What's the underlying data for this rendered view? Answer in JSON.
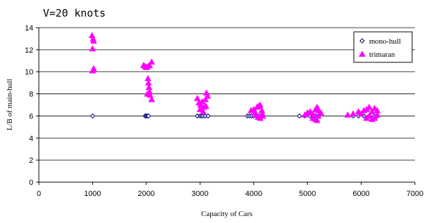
{
  "chart_data": {
    "type": "scatter",
    "title": "V=20 knots",
    "xlabel": "Capacity of Cars",
    "ylabel": "L/B of main-hull",
    "xlim": [
      0,
      7000
    ],
    "ylim": [
      0,
      14
    ],
    "xticks": [
      0,
      1000,
      2000,
      3000,
      4000,
      5000,
      6000,
      7000
    ],
    "yticks": [
      0,
      2,
      4,
      6,
      8,
      10,
      12,
      14
    ],
    "grid": "horizontal",
    "legend_position": "top-right",
    "series": [
      {
        "name": "mono-hull",
        "marker": "diamond",
        "color": "#1f1f8f",
        "points": [
          [
            1000,
            6.0
          ],
          [
            1980,
            6.0
          ],
          [
            2000,
            6.0
          ],
          [
            2020,
            6.0
          ],
          [
            2040,
            6.0
          ],
          [
            2950,
            6.0
          ],
          [
            3000,
            6.0
          ],
          [
            3030,
            6.0
          ],
          [
            3060,
            6.0
          ],
          [
            3100,
            6.0
          ],
          [
            3150,
            6.0
          ],
          [
            3880,
            6.0
          ],
          [
            3920,
            6.0
          ],
          [
            3960,
            6.0
          ],
          [
            4000,
            6.0
          ],
          [
            4050,
            6.0
          ],
          [
            4100,
            6.0
          ],
          [
            4850,
            6.0
          ],
          [
            4950,
            6.0
          ],
          [
            5050,
            6.0
          ],
          [
            5150,
            6.0
          ],
          [
            5200,
            6.0
          ],
          [
            5850,
            6.0
          ],
          [
            5950,
            6.0
          ],
          [
            6050,
            6.0
          ],
          [
            6150,
            6.0
          ],
          [
            6250,
            6.0
          ],
          [
            6300,
            6.0
          ]
        ]
      },
      {
        "name": "trimaran",
        "marker": "triangle",
        "color": "#ff00ff",
        "points": [
          [
            990,
            13.3
          ],
          [
            1010,
            13.0
          ],
          [
            1020,
            12.8
          ],
          [
            1000,
            12.1
          ],
          [
            1020,
            10.3
          ],
          [
            1000,
            10.1
          ],
          [
            1950,
            10.6
          ],
          [
            1980,
            10.5
          ],
          [
            2000,
            10.4
          ],
          [
            2030,
            10.5
          ],
          [
            2060,
            10.6
          ],
          [
            2100,
            10.9
          ],
          [
            2030,
            9.4
          ],
          [
            2040,
            9.0
          ],
          [
            2050,
            8.6
          ],
          [
            2060,
            8.2
          ],
          [
            2070,
            7.9
          ],
          [
            2100,
            7.5
          ],
          [
            2020,
            8.0
          ],
          [
            2950,
            7.6
          ],
          [
            2980,
            7.2
          ],
          [
            3010,
            7.0
          ],
          [
            3040,
            7.3
          ],
          [
            3070,
            6.8
          ],
          [
            3100,
            7.5
          ],
          [
            3120,
            8.1
          ],
          [
            3000,
            6.6
          ],
          [
            3060,
            6.4
          ],
          [
            3110,
            6.9
          ],
          [
            3140,
            7.8
          ],
          [
            3950,
            6.5
          ],
          [
            4000,
            6.6
          ],
          [
            4030,
            6.3
          ],
          [
            4060,
            6.8
          ],
          [
            4090,
            6.9
          ],
          [
            4120,
            7.0
          ],
          [
            4150,
            6.5
          ],
          [
            4040,
            6.1
          ],
          [
            4080,
            5.9
          ],
          [
            4120,
            5.8
          ],
          [
            4160,
            6.2
          ],
          [
            4170,
            6.0
          ],
          [
            4950,
            6.1
          ],
          [
            5000,
            6.3
          ],
          [
            5050,
            6.4
          ],
          [
            5100,
            6.2
          ],
          [
            5150,
            6.6
          ],
          [
            5180,
            6.8
          ],
          [
            5200,
            6.5
          ],
          [
            5100,
            5.8
          ],
          [
            5150,
            5.7
          ],
          [
            5180,
            5.6
          ],
          [
            5200,
            6.0
          ],
          [
            5250,
            6.3
          ],
          [
            5750,
            6.1
          ],
          [
            5850,
            6.2
          ],
          [
            5950,
            6.4
          ],
          [
            6000,
            6.2
          ],
          [
            6050,
            6.5
          ],
          [
            6100,
            6.6
          ],
          [
            6150,
            6.8
          ],
          [
            6200,
            6.4
          ],
          [
            6250,
            6.7
          ],
          [
            6300,
            6.5
          ],
          [
            6100,
            5.8
          ],
          [
            6150,
            6.0
          ],
          [
            6200,
            5.7
          ],
          [
            6250,
            5.8
          ],
          [
            6300,
            6.1
          ]
        ]
      }
    ]
  }
}
